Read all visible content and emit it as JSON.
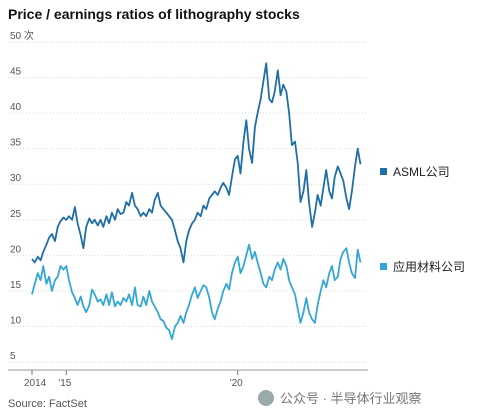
{
  "title": "Price / earnings ratios of lithography stocks",
  "source": "Source: FactSet",
  "watermark": "公众号 · 半导体行业观察",
  "colors": {
    "asml": "#1f6fa6",
    "amat": "#35a7d6",
    "grid": "#d9d9d9"
  },
  "chart_data": {
    "type": "line",
    "title": "Price / earnings ratios of lithography stocks",
    "ylabel": "",
    "y_unit_label": "50 次",
    "ylim": [
      5,
      50
    ],
    "y_ticks": [
      5,
      10,
      15,
      20,
      25,
      30,
      35,
      40,
      45
    ],
    "xlim": [
      2014.0,
      2023.8
    ],
    "x_ticks": [
      {
        "value": 2014.0,
        "label": "2014"
      },
      {
        "value": 2015.0,
        "label": "'15"
      },
      {
        "value": 2020.0,
        "label": "'20"
      }
    ],
    "grid": true,
    "legend": "right",
    "series": [
      {
        "name": "ASML公司",
        "color": "#1f6fa6",
        "points": [
          [
            2014.0,
            19.5
          ],
          [
            2014.08,
            19.0
          ],
          [
            2014.17,
            19.8
          ],
          [
            2014.25,
            19.3
          ],
          [
            2014.33,
            20.5
          ],
          [
            2014.42,
            21.5
          ],
          [
            2014.5,
            22.5
          ],
          [
            2014.58,
            23.0
          ],
          [
            2014.67,
            22.0
          ],
          [
            2014.75,
            24.0
          ],
          [
            2014.83,
            24.8
          ],
          [
            2014.92,
            25.3
          ],
          [
            2015.0,
            25.0
          ],
          [
            2015.08,
            25.5
          ],
          [
            2015.17,
            25.0
          ],
          [
            2015.25,
            26.8
          ],
          [
            2015.33,
            24.5
          ],
          [
            2015.42,
            22.8
          ],
          [
            2015.5,
            21.0
          ],
          [
            2015.58,
            24.0
          ],
          [
            2015.67,
            25.2
          ],
          [
            2015.75,
            24.5
          ],
          [
            2015.83,
            25.0
          ],
          [
            2015.92,
            24.2
          ],
          [
            2016.0,
            25.0
          ],
          [
            2016.08,
            24.0
          ],
          [
            2016.17,
            25.5
          ],
          [
            2016.25,
            24.5
          ],
          [
            2016.33,
            26.0
          ],
          [
            2016.42,
            25.0
          ],
          [
            2016.5,
            26.5
          ],
          [
            2016.58,
            25.8
          ],
          [
            2016.67,
            26.0
          ],
          [
            2016.75,
            27.5
          ],
          [
            2016.83,
            27.0
          ],
          [
            2016.92,
            28.8
          ],
          [
            2017.0,
            27.0
          ],
          [
            2017.08,
            26.5
          ],
          [
            2017.17,
            25.5
          ],
          [
            2017.25,
            26.0
          ],
          [
            2017.33,
            25.5
          ],
          [
            2017.42,
            26.5
          ],
          [
            2017.5,
            26.0
          ],
          [
            2017.58,
            27.8
          ],
          [
            2017.67,
            28.8
          ],
          [
            2017.75,
            27.0
          ],
          [
            2017.83,
            26.5
          ],
          [
            2017.92,
            26.0
          ],
          [
            2018.0,
            25.5
          ],
          [
            2018.08,
            25.0
          ],
          [
            2018.17,
            23.5
          ],
          [
            2018.25,
            22.0
          ],
          [
            2018.33,
            21.0
          ],
          [
            2018.42,
            19.0
          ],
          [
            2018.5,
            22.0
          ],
          [
            2018.58,
            23.5
          ],
          [
            2018.67,
            24.5
          ],
          [
            2018.75,
            25.0
          ],
          [
            2018.83,
            26.0
          ],
          [
            2018.92,
            25.5
          ],
          [
            2019.0,
            27.0
          ],
          [
            2019.08,
            26.5
          ],
          [
            2019.17,
            28.0
          ],
          [
            2019.25,
            28.5
          ],
          [
            2019.33,
            29.0
          ],
          [
            2019.42,
            28.5
          ],
          [
            2019.5,
            29.5
          ],
          [
            2019.58,
            30.2
          ],
          [
            2019.67,
            29.5
          ],
          [
            2019.75,
            28.5
          ],
          [
            2019.83,
            31.0
          ],
          [
            2019.92,
            33.5
          ],
          [
            2020.0,
            34.0
          ],
          [
            2020.08,
            31.5
          ],
          [
            2020.17,
            36.0
          ],
          [
            2020.25,
            39.0
          ],
          [
            2020.33,
            35.0
          ],
          [
            2020.42,
            33.0
          ],
          [
            2020.5,
            38.0
          ],
          [
            2020.58,
            40.0
          ],
          [
            2020.67,
            42.0
          ],
          [
            2020.75,
            44.5
          ],
          [
            2020.83,
            47.0
          ],
          [
            2020.92,
            42.0
          ],
          [
            2021.0,
            41.5
          ],
          [
            2021.08,
            43.0
          ],
          [
            2021.17,
            46.0
          ],
          [
            2021.25,
            42.5
          ],
          [
            2021.33,
            44.0
          ],
          [
            2021.42,
            43.0
          ],
          [
            2021.5,
            40.0
          ],
          [
            2021.58,
            35.5
          ],
          [
            2021.67,
            36.0
          ],
          [
            2021.75,
            33.0
          ],
          [
            2021.83,
            27.5
          ],
          [
            2021.92,
            29.0
          ],
          [
            2022.0,
            32.0
          ],
          [
            2022.08,
            27.5
          ],
          [
            2022.17,
            24.0
          ],
          [
            2022.25,
            26.0
          ],
          [
            2022.33,
            28.5
          ],
          [
            2022.42,
            27.0
          ],
          [
            2022.5,
            29.5
          ],
          [
            2022.58,
            32.0
          ],
          [
            2022.67,
            29.0
          ],
          [
            2022.75,
            28.0
          ],
          [
            2022.83,
            31.0
          ],
          [
            2022.92,
            32.5
          ],
          [
            2023.0,
            31.5
          ],
          [
            2023.08,
            30.5
          ],
          [
            2023.17,
            28.0
          ],
          [
            2023.25,
            26.5
          ],
          [
            2023.33,
            29.0
          ],
          [
            2023.42,
            32.5
          ],
          [
            2023.5,
            35.0
          ],
          [
            2023.58,
            32.8
          ]
        ]
      },
      {
        "name": "应用材料公司",
        "color": "#35a7d6",
        "points": [
          [
            2014.0,
            14.5
          ],
          [
            2014.08,
            16.0
          ],
          [
            2014.17,
            17.5
          ],
          [
            2014.25,
            16.5
          ],
          [
            2014.33,
            18.5
          ],
          [
            2014.42,
            16.0
          ],
          [
            2014.5,
            17.0
          ],
          [
            2014.58,
            15.0
          ],
          [
            2014.67,
            16.5
          ],
          [
            2014.75,
            17.0
          ],
          [
            2014.83,
            18.5
          ],
          [
            2014.92,
            18.0
          ],
          [
            2015.0,
            18.5
          ],
          [
            2015.08,
            16.5
          ],
          [
            2015.17,
            14.8
          ],
          [
            2015.25,
            14.0
          ],
          [
            2015.33,
            13.0
          ],
          [
            2015.42,
            14.2
          ],
          [
            2015.5,
            12.8
          ],
          [
            2015.58,
            12.0
          ],
          [
            2015.67,
            13.0
          ],
          [
            2015.75,
            15.2
          ],
          [
            2015.83,
            14.5
          ],
          [
            2015.92,
            13.5
          ],
          [
            2016.0,
            13.8
          ],
          [
            2016.08,
            13.0
          ],
          [
            2016.17,
            14.5
          ],
          [
            2016.25,
            13.0
          ],
          [
            2016.33,
            14.8
          ],
          [
            2016.42,
            12.8
          ],
          [
            2016.5,
            13.5
          ],
          [
            2016.58,
            13.0
          ],
          [
            2016.67,
            14.0
          ],
          [
            2016.75,
            13.5
          ],
          [
            2016.83,
            14.5
          ],
          [
            2016.92,
            13.0
          ],
          [
            2017.0,
            15.5
          ],
          [
            2017.08,
            13.0
          ],
          [
            2017.17,
            12.8
          ],
          [
            2017.25,
            14.2
          ],
          [
            2017.33,
            13.0
          ],
          [
            2017.42,
            15.0
          ],
          [
            2017.5,
            13.5
          ],
          [
            2017.58,
            12.8
          ],
          [
            2017.67,
            12.0
          ],
          [
            2017.75,
            11.0
          ],
          [
            2017.83,
            10.8
          ],
          [
            2017.92,
            9.8
          ],
          [
            2018.0,
            9.5
          ],
          [
            2018.08,
            8.2
          ],
          [
            2018.17,
            10.0
          ],
          [
            2018.25,
            10.5
          ],
          [
            2018.33,
            11.5
          ],
          [
            2018.42,
            10.5
          ],
          [
            2018.5,
            12.0
          ],
          [
            2018.58,
            13.0
          ],
          [
            2018.67,
            14.5
          ],
          [
            2018.75,
            15.5
          ],
          [
            2018.83,
            14.0
          ],
          [
            2018.92,
            15.0
          ],
          [
            2019.0,
            15.8
          ],
          [
            2019.08,
            15.5
          ],
          [
            2019.17,
            14.0
          ],
          [
            2019.25,
            12.0
          ],
          [
            2019.33,
            11.0
          ],
          [
            2019.42,
            12.5
          ],
          [
            2019.5,
            13.5
          ],
          [
            2019.58,
            15.0
          ],
          [
            2019.67,
            16.0
          ],
          [
            2019.75,
            15.2
          ],
          [
            2019.83,
            17.5
          ],
          [
            2019.92,
            19.0
          ],
          [
            2020.0,
            19.8
          ],
          [
            2020.08,
            17.5
          ],
          [
            2020.17,
            18.5
          ],
          [
            2020.25,
            20.0
          ],
          [
            2020.33,
            21.5
          ],
          [
            2020.42,
            19.5
          ],
          [
            2020.5,
            20.5
          ],
          [
            2020.58,
            19.0
          ],
          [
            2020.67,
            17.5
          ],
          [
            2020.75,
            16.0
          ],
          [
            2020.83,
            15.5
          ],
          [
            2020.92,
            17.0
          ],
          [
            2021.0,
            16.5
          ],
          [
            2021.08,
            18.0
          ],
          [
            2021.17,
            19.0
          ],
          [
            2021.25,
            18.0
          ],
          [
            2021.33,
            19.5
          ],
          [
            2021.42,
            18.5
          ],
          [
            2021.5,
            16.5
          ],
          [
            2021.58,
            15.5
          ],
          [
            2021.67,
            14.5
          ],
          [
            2021.75,
            12.5
          ],
          [
            2021.83,
            10.5
          ],
          [
            2021.92,
            12.0
          ],
          [
            2022.0,
            14.0
          ],
          [
            2022.08,
            12.0
          ],
          [
            2022.17,
            11.0
          ],
          [
            2022.25,
            10.5
          ],
          [
            2022.33,
            13.0
          ],
          [
            2022.42,
            15.0
          ],
          [
            2022.5,
            16.5
          ],
          [
            2022.58,
            15.5
          ],
          [
            2022.67,
            17.5
          ],
          [
            2022.75,
            18.5
          ],
          [
            2022.83,
            16.5
          ],
          [
            2022.92,
            17.0
          ],
          [
            2023.0,
            19.5
          ],
          [
            2023.08,
            20.5
          ],
          [
            2023.17,
            21.0
          ],
          [
            2023.25,
            19.0
          ],
          [
            2023.33,
            17.5
          ],
          [
            2023.42,
            16.8
          ],
          [
            2023.5,
            20.8
          ],
          [
            2023.58,
            19.0
          ]
        ]
      }
    ]
  }
}
